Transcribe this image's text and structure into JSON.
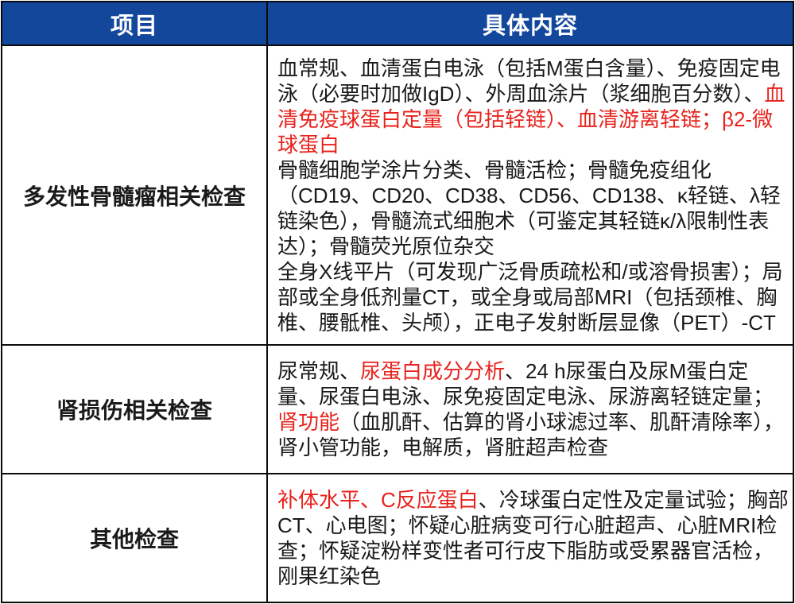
{
  "colors": {
    "header_bg": "#12479c",
    "header_text": "#ffffff",
    "border": "#0b0b0d",
    "body_text": "#1a1a1a",
    "red": "#e8231d"
  },
  "table": {
    "header": {
      "col_item": "项目",
      "col_content": "具体内容"
    },
    "rows": [
      {
        "label": "多发性骨髓瘤相关检查",
        "paragraphs": [
          [
            {
              "text": "血常规、血清蛋白电泳（包括M蛋白含量）、免疫固定电泳（必要时加做IgD）、外周血涂片（浆细胞百分数）、",
              "red": false
            },
            {
              "text": "血清免疫球蛋白定量（包括轻链）、血清游离轻链；β2-微球蛋白",
              "red": true
            }
          ],
          [
            {
              "text": "骨髓细胞学涂片分类、骨髓活检；骨髓免疫组化（CD19、CD20、CD38、CD56、CD138、κ轻链、λ轻链染色），骨髓流式细胞术（可鉴定其轻链κ/λ限制性表达）；骨髓荧光原位杂交",
              "red": false
            }
          ],
          [
            {
              "text": "全身X线平片（可发现广泛骨质疏松和/或溶骨损害）；局部或全身低剂量CT，或全身或局部MRI（包括颈椎、胸椎、腰骶椎、头颅），正电子发射断层显像（PET）-CT",
              "red": false
            }
          ]
        ]
      },
      {
        "label": "肾损伤相关检查",
        "paragraphs": [
          [
            {
              "text": "尿常规、",
              "red": false
            },
            {
              "text": "尿蛋白成分分析",
              "red": true
            },
            {
              "text": "、24 h尿蛋白及尿M蛋白定量、尿蛋白电泳、尿免疫固定电泳、尿游离轻链定量；",
              "red": false
            },
            {
              "text": "肾功能",
              "red": true
            },
            {
              "text": "（血肌酐、估算的肾小球滤过率、肌酐清除率），肾小管功能，电解质，肾脏超声检查",
              "red": false
            }
          ]
        ]
      },
      {
        "label": "其他检查",
        "paragraphs": [
          [
            {
              "text": "补体水平、C反应蛋白",
              "red": true
            },
            {
              "text": "、冷球蛋白定性及定量试验；胸部CT、心电图；怀疑心脏病变可行心脏超声、心脏MRI检查；怀疑淀粉样变性者可行皮下脂肪或受累器官活检，刚果红染色",
              "red": false
            }
          ]
        ]
      }
    ]
  }
}
